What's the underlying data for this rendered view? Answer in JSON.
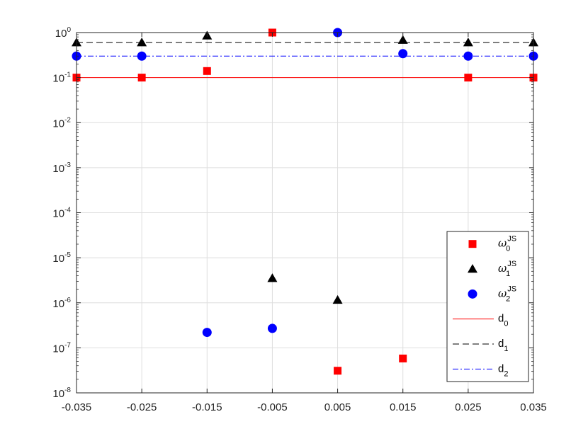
{
  "chart_data": {
    "type": "scatter",
    "y_scale": "log",
    "grid": true,
    "xlim": [
      -0.035,
      0.035
    ],
    "ylim": [
      1e-08,
      1
    ],
    "x_ticks": [
      -0.035,
      -0.025,
      -0.015,
      -0.005,
      0.005,
      0.015,
      0.025,
      0.035
    ],
    "x_tick_labels": [
      "-0.035",
      "-0.025",
      "-0.015",
      "-0.005",
      "0.005",
      "0.015",
      "0.025",
      "0.035"
    ],
    "y_ticks": [
      {
        "value": 1e-08,
        "base": "10",
        "exp": "-8"
      },
      {
        "value": 1e-07,
        "base": "10",
        "exp": "-7"
      },
      {
        "value": 1e-06,
        "base": "10",
        "exp": "-6"
      },
      {
        "value": 1e-05,
        "base": "10",
        "exp": "-5"
      },
      {
        "value": 0.0001,
        "base": "10",
        "exp": "-4"
      },
      {
        "value": 0.001,
        "base": "10",
        "exp": "-3"
      },
      {
        "value": 0.01,
        "base": "10",
        "exp": "-2"
      },
      {
        "value": 0.1,
        "base": "10",
        "exp": "-1"
      },
      {
        "value": 1,
        "base": "10",
        "exp": "0"
      }
    ],
    "legend_position": "bottom-right",
    "series": [
      {
        "id": "w0",
        "kind": "marker",
        "marker": "square",
        "color": "#ff0000",
        "legend": {
          "main": "ω",
          "sub": "0",
          "sup": "JS"
        },
        "points": [
          {
            "x": -0.035,
            "y": 0.1
          },
          {
            "x": -0.025,
            "y": 0.1
          },
          {
            "x": -0.015,
            "y": 0.14
          },
          {
            "x": -0.005,
            "y": 1.0
          },
          {
            "x": 0.005,
            "y": 3.1e-08
          },
          {
            "x": 0.015,
            "y": 5.8e-08
          },
          {
            "x": 0.025,
            "y": 0.1
          },
          {
            "x": 0.035,
            "y": 0.1
          }
        ]
      },
      {
        "id": "w1",
        "kind": "marker",
        "marker": "triangle",
        "color": "#000000",
        "legend": {
          "main": "ω",
          "sub": "1",
          "sup": "JS"
        },
        "points": [
          {
            "x": -0.035,
            "y": 0.6
          },
          {
            "x": -0.025,
            "y": 0.6
          },
          {
            "x": -0.015,
            "y": 0.85
          },
          {
            "x": -0.005,
            "y": 3.5e-06
          },
          {
            "x": 0.005,
            "y": 1.15e-06
          },
          {
            "x": 0.015,
            "y": 0.68
          },
          {
            "x": 0.025,
            "y": 0.6
          },
          {
            "x": 0.035,
            "y": 0.6
          }
        ]
      },
      {
        "id": "w2",
        "kind": "marker",
        "marker": "circle",
        "color": "#0000ff",
        "legend": {
          "main": "ω",
          "sub": "2",
          "sup": "JS"
        },
        "points": [
          {
            "x": -0.035,
            "y": 0.3
          },
          {
            "x": -0.025,
            "y": 0.3
          },
          {
            "x": -0.015,
            "y": 2.2e-07
          },
          {
            "x": -0.005,
            "y": 2.7e-07
          },
          {
            "x": 0.005,
            "y": 1.0
          },
          {
            "x": 0.015,
            "y": 0.34
          },
          {
            "x": 0.025,
            "y": 0.3
          },
          {
            "x": 0.035,
            "y": 0.3
          }
        ]
      },
      {
        "id": "d0",
        "kind": "line",
        "color": "#ff0000",
        "dash": "solid",
        "legend": {
          "main": "d",
          "sub": "0"
        },
        "points": [
          {
            "x": -0.035,
            "y": 0.1
          },
          {
            "x": 0.035,
            "y": 0.1
          }
        ]
      },
      {
        "id": "d1",
        "kind": "line",
        "color": "#000000",
        "dash": "dashed",
        "legend": {
          "main": "d",
          "sub": "1"
        },
        "points": [
          {
            "x": -0.035,
            "y": 0.6
          },
          {
            "x": 0.035,
            "y": 0.6
          }
        ]
      },
      {
        "id": "d2",
        "kind": "line",
        "color": "#0000ff",
        "dash": "dash-dot",
        "legend": {
          "main": "d",
          "sub": "2"
        },
        "points": [
          {
            "x": -0.035,
            "y": 0.3
          },
          {
            "x": 0.035,
            "y": 0.3
          }
        ]
      }
    ]
  }
}
